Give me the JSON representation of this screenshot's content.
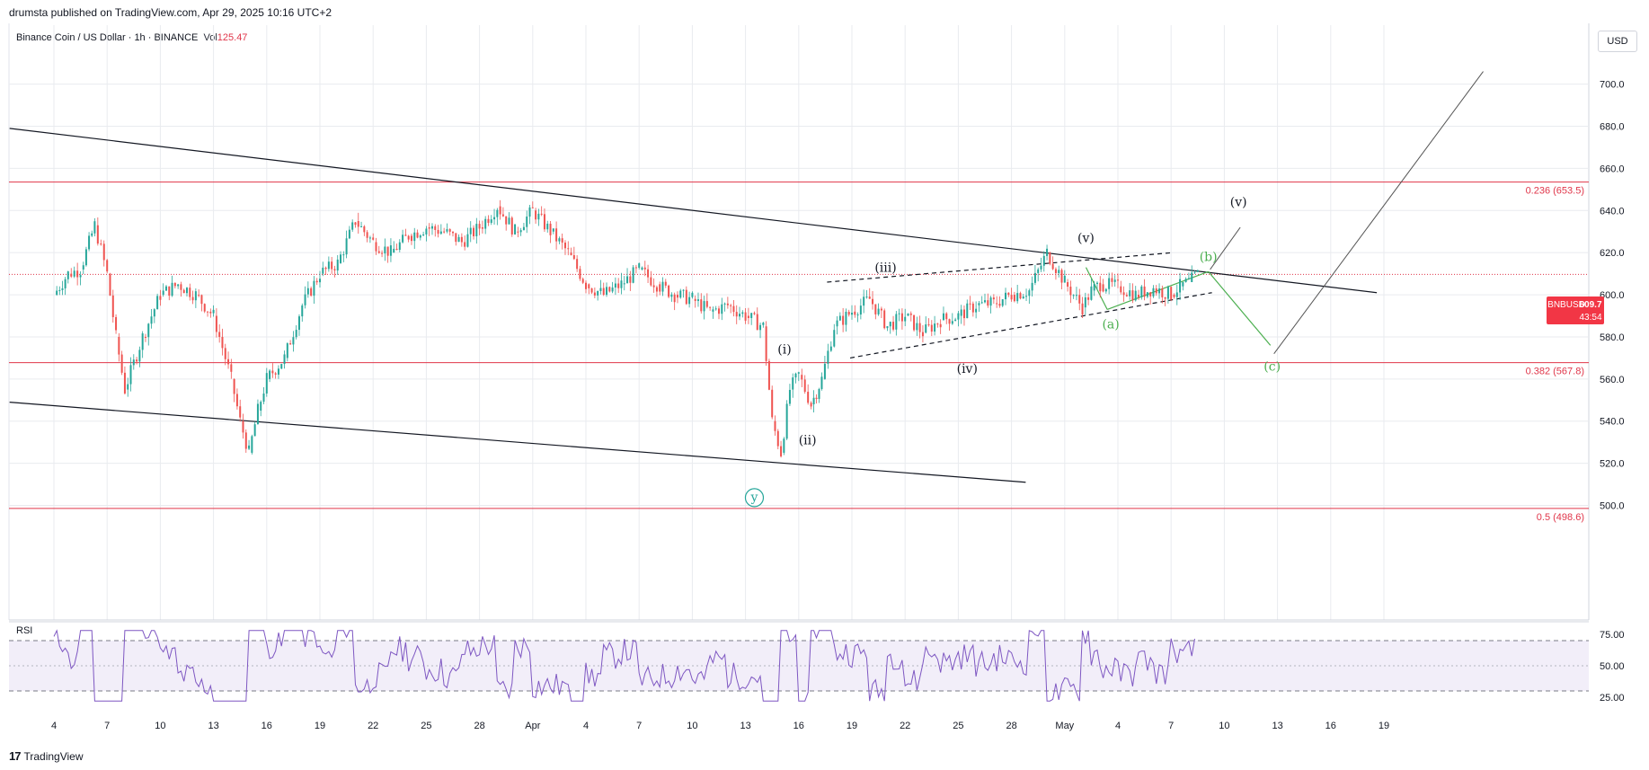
{
  "header": {
    "publisher_text": "drumsta published on TradingView.com, Apr 29, 2025 10:16 UTC+2"
  },
  "symbol": {
    "title": "Binance Coin / US Dollar · 1h · BINANCE",
    "vol_label": "Vol",
    "vol_value": "125.47"
  },
  "currency_button": "USD",
  "footer": {
    "brand": "TradingView",
    "mark": "17"
  },
  "price_badge": {
    "ticker": "BNBUSD",
    "price": "609.7",
    "countdown": "43:54"
  },
  "colors": {
    "up": "#26a69a",
    "down": "#ef5350",
    "fib": "#e0364a",
    "rsi": "#7e57c2",
    "wave_green": "#4caf50"
  },
  "chart_data": {
    "type": "candlestick",
    "title": "Binance Coin / US Dollar · 1h · BINANCE",
    "ylim": [
      485,
      725
    ],
    "y_ticks": [
      "500.0",
      "520.0",
      "540.0",
      "560.0",
      "580.0",
      "600.0",
      "620.0",
      "640.0",
      "660.0",
      "680.0",
      "700.0"
    ],
    "x_ticks": [
      "4",
      "7",
      "10",
      "13",
      "16",
      "19",
      "22",
      "25",
      "28",
      "Apr",
      "4",
      "7",
      "10",
      "13",
      "16",
      "19",
      "22",
      "25",
      "28",
      "May",
      "4",
      "7",
      "10",
      "13",
      "16",
      "19"
    ],
    "price_path": [
      [
        0,
        600
      ],
      [
        0.8,
        610
      ],
      [
        1.5,
        612
      ],
      [
        2.3,
        633
      ],
      [
        3,
        610
      ],
      [
        3.5,
        580
      ],
      [
        4,
        555
      ],
      [
        5,
        580
      ],
      [
        6,
        600
      ],
      [
        7,
        605
      ],
      [
        8,
        600
      ],
      [
        9,
        590
      ],
      [
        10,
        560
      ],
      [
        10.5,
        540
      ],
      [
        11,
        525
      ],
      [
        11.5,
        545
      ],
      [
        12,
        560
      ],
      [
        13,
        570
      ],
      [
        14,
        595
      ],
      [
        15,
        610
      ],
      [
        16,
        615
      ],
      [
        17,
        635
      ],
      [
        18,
        625
      ],
      [
        19,
        620
      ],
      [
        20,
        628
      ],
      [
        21,
        632
      ],
      [
        22,
        630
      ],
      [
        23,
        625
      ],
      [
        24,
        632
      ],
      [
        25,
        642
      ],
      [
        26,
        630
      ],
      [
        27,
        640
      ],
      [
        28,
        630
      ],
      [
        29,
        620
      ],
      [
        30,
        605
      ],
      [
        31,
        600
      ],
      [
        32,
        605
      ],
      [
        33,
        612
      ],
      [
        34,
        605
      ],
      [
        35,
        600
      ],
      [
        36,
        598
      ],
      [
        37,
        592
      ],
      [
        38,
        595
      ],
      [
        39,
        590
      ],
      [
        40,
        585
      ],
      [
        40.5,
        540
      ],
      [
        41,
        525
      ],
      [
        41.5,
        555
      ],
      [
        42,
        562
      ],
      [
        42.7,
        548
      ],
      [
        43.3,
        560
      ],
      [
        44,
        585
      ],
      [
        45,
        592
      ],
      [
        46,
        598
      ],
      [
        47,
        585
      ],
      [
        48,
        590
      ],
      [
        49,
        582
      ],
      [
        50,
        588
      ],
      [
        51,
        590
      ],
      [
        52,
        595
      ],
      [
        53,
        596
      ],
      [
        54,
        600
      ],
      [
        55,
        602
      ],
      [
        56,
        620
      ],
      [
        57,
        606
      ],
      [
        58,
        594
      ],
      [
        58.5,
        602
      ],
      [
        59,
        605
      ],
      [
        60,
        604
      ],
      [
        61,
        600
      ],
      [
        62,
        603
      ],
      [
        63,
        600
      ],
      [
        63.5,
        604
      ],
      [
        64,
        606
      ],
      [
        64.5,
        609.7
      ]
    ],
    "levels": [
      {
        "label": "0.236 (653.5)",
        "value": 653.5
      },
      {
        "label": "0.382 (567.8)",
        "value": 567.8
      },
      {
        "label": "0.5 (498.6)",
        "value": 498.6
      }
    ],
    "wave_labels_black": [
      {
        "text": "(i)",
        "x": 41.2,
        "y": 572
      },
      {
        "text": "(ii)",
        "x": 42.5,
        "y": 529
      },
      {
        "text": "(iii)",
        "x": 46.9,
        "y": 611
      },
      {
        "text": "(iv)",
        "x": 51.5,
        "y": 563
      },
      {
        "text": "(v)",
        "x": 58.2,
        "y": 625
      },
      {
        "text": "(v)",
        "x": 66.8,
        "y": 642
      }
    ],
    "wave_labels_green": [
      {
        "text": "(a)",
        "x": 59.6,
        "y": 584
      },
      {
        "text": "(b)",
        "x": 65.1,
        "y": 616
      },
      {
        "text": "(c)",
        "x": 68.7,
        "y": 564
      },
      {
        "text": "y",
        "x": 39.5,
        "y": 502
      }
    ],
    "rsi": {
      "label": "RSI",
      "ylim": [
        15,
        85
      ],
      "levels": [
        "75.00",
        "50.00",
        "25.00"
      ],
      "upper": 70,
      "lower": 30
    }
  }
}
